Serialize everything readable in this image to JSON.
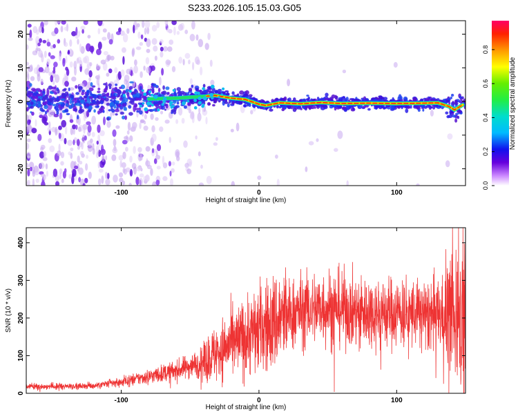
{
  "title": "S233.2026.105.15.03.G05",
  "chart_data": [
    {
      "type": "heatmap",
      "xlabel": "Height of straight line (km)",
      "ylabel": "Frequency (Hz)",
      "xlim": [
        -169,
        150
      ],
      "ylim": [
        -25,
        24
      ],
      "xticks": [
        -100,
        0,
        100
      ],
      "yticks": [
        -20,
        -10,
        0,
        10,
        20
      ],
      "colorbar": {
        "label": "Normalized spectral amplitude",
        "range": [
          0,
          0.97
        ],
        "ticks": [
          0.0,
          0.2,
          0.4,
          0.6,
          0.8
        ]
      },
      "ridge": [
        [
          -169,
          0
        ],
        [
          -100,
          0.5
        ],
        [
          -60,
          1
        ],
        [
          -40,
          1.5
        ],
        [
          -32,
          1.8
        ],
        [
          -20,
          1
        ],
        [
          -10,
          0.6
        ],
        [
          0,
          -0.8
        ],
        [
          5,
          -1.2
        ],
        [
          15,
          -0.4
        ],
        [
          30,
          -0.7
        ],
        [
          45,
          -0.3
        ],
        [
          60,
          -0.6
        ],
        [
          80,
          -0.5
        ],
        [
          100,
          -0.6
        ],
        [
          120,
          -0.5
        ],
        [
          130,
          -0.4
        ],
        [
          138,
          -1.5
        ],
        [
          142,
          -2.5
        ],
        [
          150,
          -0.5
        ]
      ]
    },
    {
      "type": "line",
      "xlabel": "Height of straight line (km)",
      "ylabel": "SNR (10 * v/v)",
      "xlim": [
        -169,
        150
      ],
      "ylim": [
        0,
        440
      ],
      "xticks": [
        -100,
        0,
        100
      ],
      "yticks": [
        0,
        100,
        200,
        300,
        400
      ],
      "color": "#ee3333",
      "trend": [
        [
          -169,
          18
        ],
        [
          -120,
          20
        ],
        [
          -100,
          30
        ],
        [
          -80,
          45
        ],
        [
          -60,
          60
        ],
        [
          -40,
          85
        ],
        [
          -30,
          110
        ],
        [
          -20,
          130
        ],
        [
          -10,
          150
        ],
        [
          0,
          170
        ],
        [
          10,
          185
        ],
        [
          20,
          205
        ],
        [
          30,
          220
        ],
        [
          50,
          230
        ],
        [
          60,
          225
        ],
        [
          80,
          215
        ],
        [
          100,
          215
        ],
        [
          120,
          210
        ],
        [
          140,
          210
        ],
        [
          150,
          215
        ]
      ]
    }
  ]
}
